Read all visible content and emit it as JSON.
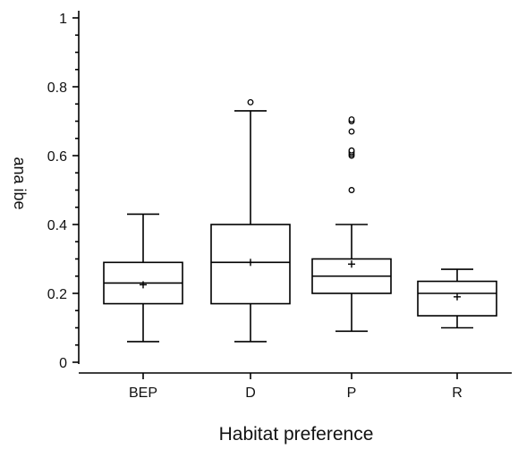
{
  "chart_data": {
    "type": "box",
    "xlabel": "Habitat preference",
    "ylabel": "ana ibe",
    "ylim": [
      0,
      1
    ],
    "yticks": [
      {
        "value": 0,
        "label": "0"
      },
      {
        "value": 0.2,
        "label": "0.2"
      },
      {
        "value": 0.4,
        "label": "0.4"
      },
      {
        "value": 0.6,
        "label": "0.6"
      },
      {
        "value": 0.8,
        "label": "0.8"
      },
      {
        "value": 1,
        "label": "1"
      }
    ],
    "grid": false,
    "categories": [
      "BEP",
      "D",
      "P",
      "R"
    ],
    "boxes": [
      {
        "category": "BEP",
        "whisker_low": 0.06,
        "q1": 0.17,
        "median": 0.23,
        "q3": 0.29,
        "whisker_high": 0.43,
        "mean": 0.225,
        "outliers": []
      },
      {
        "category": "D",
        "whisker_low": 0.06,
        "q1": 0.17,
        "median": 0.29,
        "q3": 0.4,
        "whisker_high": 0.73,
        "mean": 0.29,
        "outliers": [
          0.755
        ]
      },
      {
        "category": "P",
        "whisker_low": 0.09,
        "q1": 0.2,
        "median": 0.25,
        "q3": 0.3,
        "whisker_high": 0.4,
        "mean": 0.285,
        "outliers": [
          0.5,
          0.6,
          0.605,
          0.61,
          0.615,
          0.67,
          0.7,
          0.705
        ]
      },
      {
        "category": "R",
        "whisker_low": 0.1,
        "q1": 0.135,
        "median": 0.2,
        "q3": 0.235,
        "whisker_high": 0.27,
        "mean": 0.19,
        "outliers": []
      }
    ]
  }
}
